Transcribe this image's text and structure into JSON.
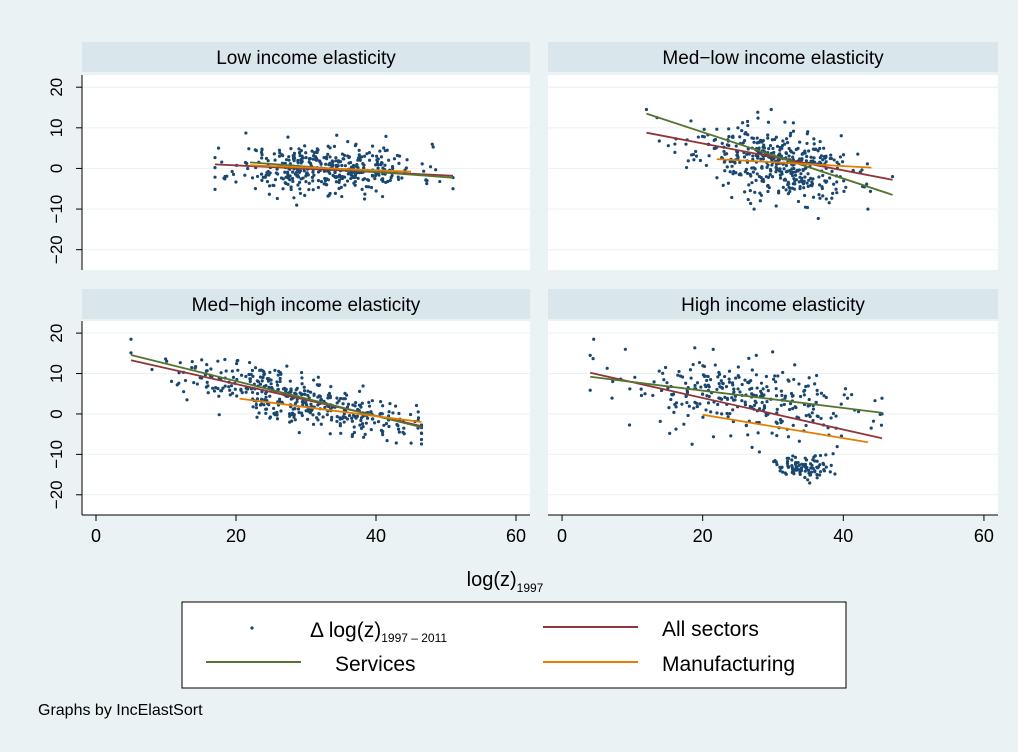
{
  "footer_note": "Graphs by IncElastSort",
  "x_axis_title": {
    "main": "log(z)",
    "sub": "1997"
  },
  "legend": {
    "scatter": {
      "main": "Δ log(z)",
      "sub": "1997 – 2011"
    },
    "all_sectors": "All sectors",
    "services": "Services",
    "manufacturing": "Manufacturing"
  },
  "colors": {
    "background": "#eaf2f3",
    "panel_header": "#d9e6eb",
    "scatter": "#1a476f",
    "all_sectors": "#90353b",
    "services": "#55752f",
    "manufacturing": "#e37e00"
  },
  "chart_data": [
    {
      "type": "scatter",
      "title": "Low income elasticity",
      "xlim": [
        -2,
        62
      ],
      "ylim": [
        -25,
        23
      ],
      "xticks": [
        "0",
        "20",
        "40",
        "60"
      ],
      "yticks": [
        "−20",
        "−10",
        "0",
        "10",
        "20"
      ],
      "show_x_axis": false,
      "show_y_axis": true,
      "scatter": {
        "n": 420,
        "x_range": [
          17,
          51
        ],
        "x_center": 33,
        "x_spread": 6.5,
        "y_noise": 3.0,
        "seed": 11,
        "clusters": [],
        "extra_points": [
          [
            17.5,
            5
          ],
          [
            51,
            -5
          ]
        ]
      },
      "fits": [
        {
          "series": "All sectors",
          "x": [
            17,
            51
          ],
          "y": [
            1.0,
            -1.8
          ]
        },
        {
          "series": "Services",
          "x": [
            22,
            51
          ],
          "y": [
            1.5,
            -2.3
          ]
        },
        {
          "series": "Manufacturing",
          "x": [
            22,
            45
          ],
          "y": [
            0.8,
            -0.8
          ]
        }
      ]
    },
    {
      "type": "scatter",
      "title": "Med−low income elasticity",
      "xlim": [
        -2,
        62
      ],
      "ylim": [
        -25,
        23
      ],
      "xticks": [
        "0",
        "20",
        "40",
        "60"
      ],
      "yticks": [
        "−20",
        "−10",
        "0",
        "10",
        "20"
      ],
      "show_x_axis": false,
      "show_y_axis": false,
      "scatter": {
        "n": 440,
        "x_range": [
          12,
          47
        ],
        "x_center": 30,
        "x_spread": 5.5,
        "slope": -0.35,
        "intercept": 12,
        "y_noise": 4.2,
        "seed": 23,
        "clusters": [],
        "extra_points": [
          [
            12,
            14.5
          ],
          [
            13.5,
            12.5
          ],
          [
            43.5,
            -10
          ],
          [
            47,
            -2
          ]
        ]
      },
      "fits": [
        {
          "series": "All sectors",
          "x": [
            12,
            47
          ],
          "y": [
            8.8,
            -2.8
          ]
        },
        {
          "series": "Services",
          "x": [
            12,
            47
          ],
          "y": [
            13.5,
            -6.5
          ]
        },
        {
          "series": "Manufacturing",
          "x": [
            22,
            44
          ],
          "y": [
            2.3,
            0.2
          ]
        }
      ]
    },
    {
      "type": "scatter",
      "title": "Med−high income elasticity",
      "xlim": [
        -2,
        62
      ],
      "ylim": [
        -25,
        23
      ],
      "xticks": [
        "0",
        "20",
        "40",
        "60"
      ],
      "yticks": [
        "−20",
        "−10",
        "0",
        "10",
        "20"
      ],
      "show_x_axis": true,
      "show_y_axis": true,
      "scatter": {
        "n": 420,
        "x_range": [
          5,
          46.5
        ],
        "x_center": 29,
        "x_spread": 8,
        "slope": -0.42,
        "intercept": 16,
        "y_noise": 3.0,
        "seed": 37,
        "clusters": [],
        "extra_points": [
          [
            5,
            18.5
          ],
          [
            8,
            11
          ],
          [
            13,
            3.5
          ],
          [
            46,
            -3.5
          ]
        ]
      },
      "fits": [
        {
          "series": "All sectors",
          "x": [
            5,
            46.5
          ],
          "y": [
            13.3,
            -3.0
          ]
        },
        {
          "series": "Services",
          "x": [
            5,
            46.5
          ],
          "y": [
            14.6,
            -3.3
          ]
        },
        {
          "series": "Manufacturing",
          "x": [
            20.5,
            46.5
          ],
          "y": [
            3.8,
            -2.0
          ]
        }
      ]
    },
    {
      "type": "scatter",
      "title": "High income elasticity",
      "xlim": [
        -2,
        62
      ],
      "ylim": [
        -25,
        23
      ],
      "xticks": [
        "0",
        "20",
        "40",
        "60"
      ],
      "yticks": [
        "−20",
        "−10",
        "0",
        "10",
        "20"
      ],
      "show_x_axis": true,
      "show_y_axis": false,
      "scatter": {
        "n": 300,
        "x_range": [
          4,
          45.5
        ],
        "x_center": 27,
        "x_spread": 9,
        "slope": -0.2,
        "intercept": 9,
        "y_noise": 4.5,
        "seed": 53,
        "clusters": [
          {
            "n": 100,
            "x_center": 34.5,
            "x_spread": 2.2,
            "y_center": -13.5,
            "y_spread": 1.4
          }
        ],
        "extra_points": [
          [
            4,
            14.5
          ],
          [
            4.5,
            18.5
          ],
          [
            9,
            16
          ],
          [
            18.5,
            -7.5
          ]
        ]
      },
      "fits": [
        {
          "series": "All sectors",
          "x": [
            4,
            45.5
          ],
          "y": [
            10.2,
            -6.0
          ]
        },
        {
          "series": "Services",
          "x": [
            4,
            45.5
          ],
          "y": [
            9.2,
            0.3
          ]
        },
        {
          "series": "Manufacturing",
          "x": [
            20,
            43.5
          ],
          "y": [
            -0.2,
            -7.0
          ]
        }
      ]
    }
  ]
}
